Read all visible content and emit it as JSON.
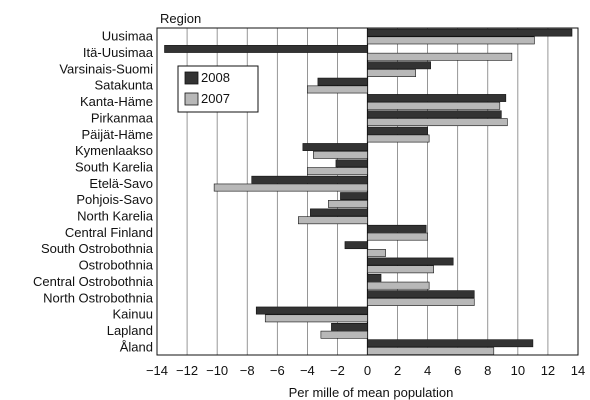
{
  "chart_data": {
    "type": "bar",
    "orientation": "horizontal",
    "title": "",
    "ylabel": "Region",
    "xlabel": "Per mille of mean population",
    "xlim": [
      -14,
      14
    ],
    "xticks": [
      -14,
      -12,
      -10,
      -8,
      -6,
      -4,
      -2,
      0,
      2,
      4,
      6,
      8,
      10,
      12,
      14
    ],
    "grid": "vertical",
    "legend": "top-left",
    "categories": [
      "Uusimaa",
      "Itä-Uusimaa",
      "Varsinais-Suomi",
      "Satakunta",
      "Kanta-Häme",
      "Pirkanmaa",
      "Päijät-Häme",
      "Kymenlaakso",
      "South Karelia",
      "Etelä-Savo",
      "Pohjois-Savo",
      "North Karelia",
      "Central Finland",
      "South Ostrobothnia",
      "Ostrobothnia",
      "Central Ostrobothnia",
      "North Ostrobothnia",
      "Kainuu",
      "Lapland",
      "Åland"
    ],
    "series": [
      {
        "name": "2008",
        "color": "#333333",
        "values": [
          13.6,
          -13.5,
          4.2,
          -3.3,
          9.2,
          8.9,
          4.0,
          -4.3,
          -2.1,
          -7.7,
          -1.8,
          -3.8,
          3.9,
          -1.5,
          5.7,
          0.9,
          7.1,
          -7.4,
          -2.4,
          11.0
        ]
      },
      {
        "name": "2007",
        "color": "#b8b8b8",
        "values": [
          11.1,
          9.6,
          3.2,
          -4.0,
          8.8,
          9.3,
          4.1,
          -3.6,
          -4.0,
          -10.2,
          -2.6,
          -4.6,
          4.0,
          1.2,
          4.4,
          4.1,
          7.1,
          -6.8,
          -3.1,
          8.4
        ]
      }
    ]
  }
}
